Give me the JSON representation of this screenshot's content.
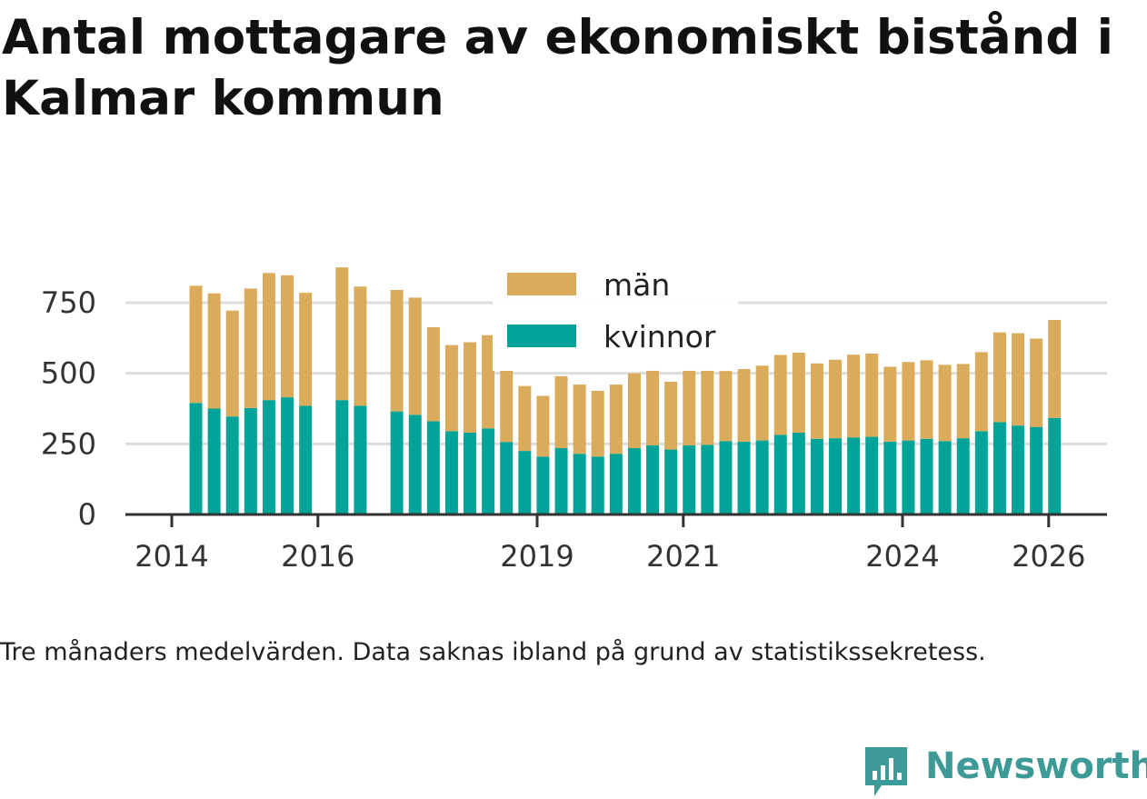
{
  "title": "Antal mottagare av ekonomiskt bistånd i Kalmar kommun",
  "caption": "Tre månaders medelvärden. Data saknas ibland på grund av statistikssekretess.",
  "brand": {
    "name": "Newsworthy",
    "color": "#3d9a97",
    "icon": "newsworthy-logo-icon"
  },
  "colors": {
    "kvinnor": "#00a398",
    "man": "#d9ab5b",
    "grid": "#dddddd",
    "axis": "#333333"
  },
  "chart_data": {
    "type": "bar",
    "stacked": true,
    "title": "Antal mottagare av ekonomiskt bistånd i Kalmar kommun",
    "xlabel": "",
    "ylabel": "",
    "ylim": [
      0,
      875
    ],
    "yticks": [
      0,
      250,
      500,
      750
    ],
    "xticks": [
      {
        "label": "2014",
        "x": 2014.0
      },
      {
        "label": "2016",
        "x": 2016.0
      },
      {
        "label": "2019",
        "x": 2019.0
      },
      {
        "label": "2021",
        "x": 2021.0
      },
      {
        "label": "2024",
        "x": 2024.0
      },
      {
        "label": "2026",
        "x": 2026.0
      }
    ],
    "legend": [
      "män",
      "kvinnor"
    ],
    "x": [
      2014.33,
      2014.58,
      2014.83,
      2015.08,
      2015.33,
      2015.58,
      2015.83,
      2016.33,
      2016.58,
      2017.08,
      2017.33,
      2017.58,
      2017.83,
      2018.08,
      2018.33,
      2018.58,
      2018.83,
      2019.08,
      2019.33,
      2019.58,
      2019.83,
      2020.08,
      2020.33,
      2020.58,
      2020.83,
      2021.08,
      2021.33,
      2021.58,
      2021.83,
      2022.08,
      2022.33,
      2022.58,
      2022.83,
      2023.08,
      2023.33,
      2023.58,
      2023.83,
      2024.08,
      2024.33,
      2024.58,
      2024.83,
      2025.08,
      2025.33,
      2025.58,
      2025.83,
      2026.08
    ],
    "series": [
      {
        "name": "kvinnor",
        "values": [
          395,
          375,
          347,
          377,
          405,
          415,
          385,
          405,
          385,
          365,
          353,
          330,
          295,
          290,
          305,
          257,
          225,
          205,
          235,
          215,
          205,
          215,
          235,
          245,
          230,
          245,
          247,
          260,
          258,
          262,
          282,
          290,
          268,
          270,
          273,
          275,
          258,
          262,
          268,
          260,
          270,
          295,
          327,
          315,
          310,
          342
        ]
      },
      {
        "name": "män",
        "values": [
          415,
          408,
          375,
          423,
          450,
          432,
          400,
          470,
          422,
          430,
          415,
          333,
          305,
          320,
          330,
          252,
          230,
          215,
          255,
          245,
          233,
          245,
          265,
          265,
          240,
          265,
          263,
          248,
          257,
          265,
          283,
          283,
          267,
          278,
          293,
          295,
          265,
          278,
          278,
          270,
          263,
          280,
          318,
          327,
          313,
          347
        ]
      }
    ]
  }
}
